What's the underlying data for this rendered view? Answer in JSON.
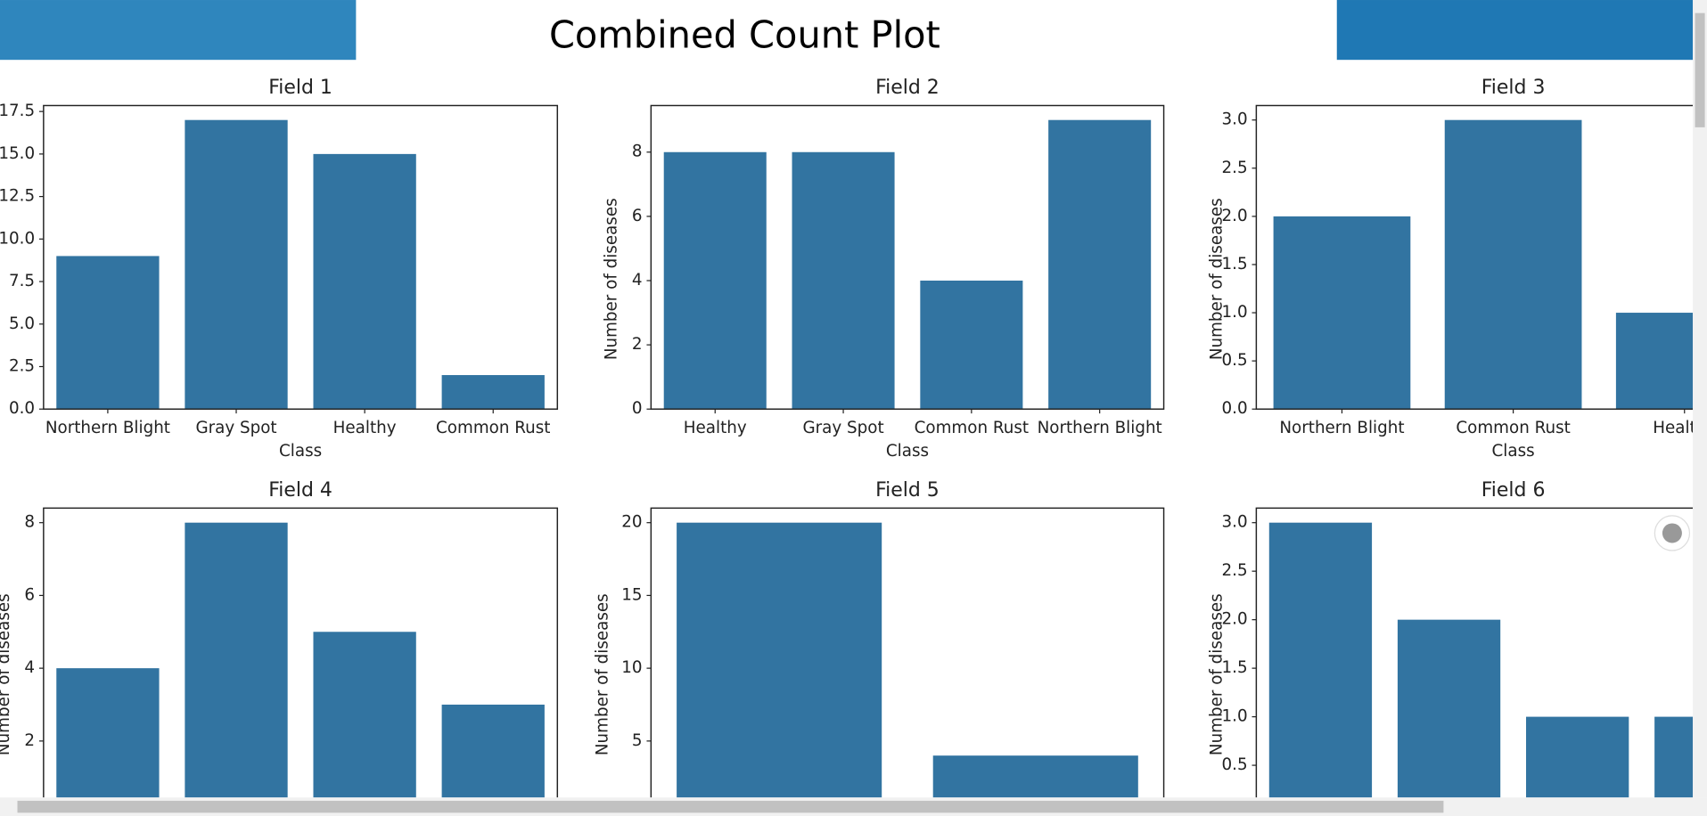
{
  "page_title": "Combined Count Plot",
  "chart_data": [
    {
      "type": "bar",
      "title": "Field 1",
      "xlabel": "Class",
      "color": "#3274a1",
      "categories": [
        "Northern Blight",
        "Gray Spot",
        "Healthy",
        "Common Rust"
      ],
      "values": [
        9,
        17,
        15,
        2
      ],
      "ylim": [
        0,
        17.85
      ],
      "yticks": [
        {
          "value": 0,
          "label": "0.0"
        },
        {
          "value": 2.5,
          "label": "2.5"
        },
        {
          "value": 5,
          "label": "5.0"
        },
        {
          "value": 7.5,
          "label": "7.5"
        },
        {
          "value": 10,
          "label": "10.0"
        },
        {
          "value": 12.5,
          "label": "12.5"
        },
        {
          "value": 15,
          "label": "15.0"
        },
        {
          "value": 17.5,
          "label": "17.5"
        }
      ]
    },
    {
      "type": "bar",
      "title": "Field 2",
      "xlabel": "Class",
      "ylabel": "Number of diseases",
      "color": "#3274a1",
      "categories": [
        "Healthy",
        "Gray Spot",
        "Common Rust",
        "Northern Blight"
      ],
      "values": [
        8,
        8,
        4,
        9
      ],
      "ylim": [
        0,
        9.45
      ],
      "yticks": [
        0,
        2,
        4,
        6,
        8
      ]
    },
    {
      "type": "bar",
      "title": "Field 3",
      "xlabel": "Class",
      "ylabel": "Number of diseases",
      "color": "#3274a1",
      "categories": [
        "Northern Blight",
        "Common Rust",
        "Healthy"
      ],
      "values": [
        2,
        3,
        1
      ],
      "ylim": [
        0,
        3.15
      ],
      "yticks": [
        {
          "value": 0,
          "label": "0.0"
        },
        {
          "value": 0.5,
          "label": "0.5"
        },
        {
          "value": 1,
          "label": "1.0"
        },
        {
          "value": 1.5,
          "label": "1.5"
        },
        {
          "value": 2,
          "label": "2.0"
        },
        {
          "value": 2.5,
          "label": "2.5"
        },
        {
          "value": 3,
          "label": "3.0"
        }
      ]
    },
    {
      "type": "bar",
      "title": "Field 4",
      "ylabel": "Number of diseases",
      "color": "#3274a1",
      "categories": [
        null,
        null,
        null,
        null
      ],
      "values": [
        4,
        8,
        5,
        3
      ],
      "ylim": [
        0,
        8.4
      ],
      "yticks": [
        2,
        4,
        6,
        8
      ]
    },
    {
      "type": "bar",
      "title": "Field 5",
      "ylabel": "Number of diseases",
      "color": "#3274a1",
      "categories": [
        null,
        null
      ],
      "values": [
        20,
        4
      ],
      "ylim": [
        0,
        21
      ],
      "yticks": [
        5,
        10,
        15,
        20
      ]
    },
    {
      "type": "bar",
      "title": "Field 6",
      "ylabel": "Number of diseases",
      "color": "#3274a1",
      "categories": [
        null,
        null,
        null,
        null
      ],
      "values": [
        3,
        2,
        1,
        1
      ],
      "ylim": [
        0,
        3.15
      ],
      "yticks": [
        {
          "value": 0.5,
          "label": "0.5"
        },
        {
          "value": 1,
          "label": "1.0"
        },
        {
          "value": 1.5,
          "label": "1.5"
        },
        {
          "value": 2,
          "label": "2.0"
        },
        {
          "value": 2.5,
          "label": "2.5"
        },
        {
          "value": 3,
          "label": "3.0"
        }
      ]
    }
  ]
}
